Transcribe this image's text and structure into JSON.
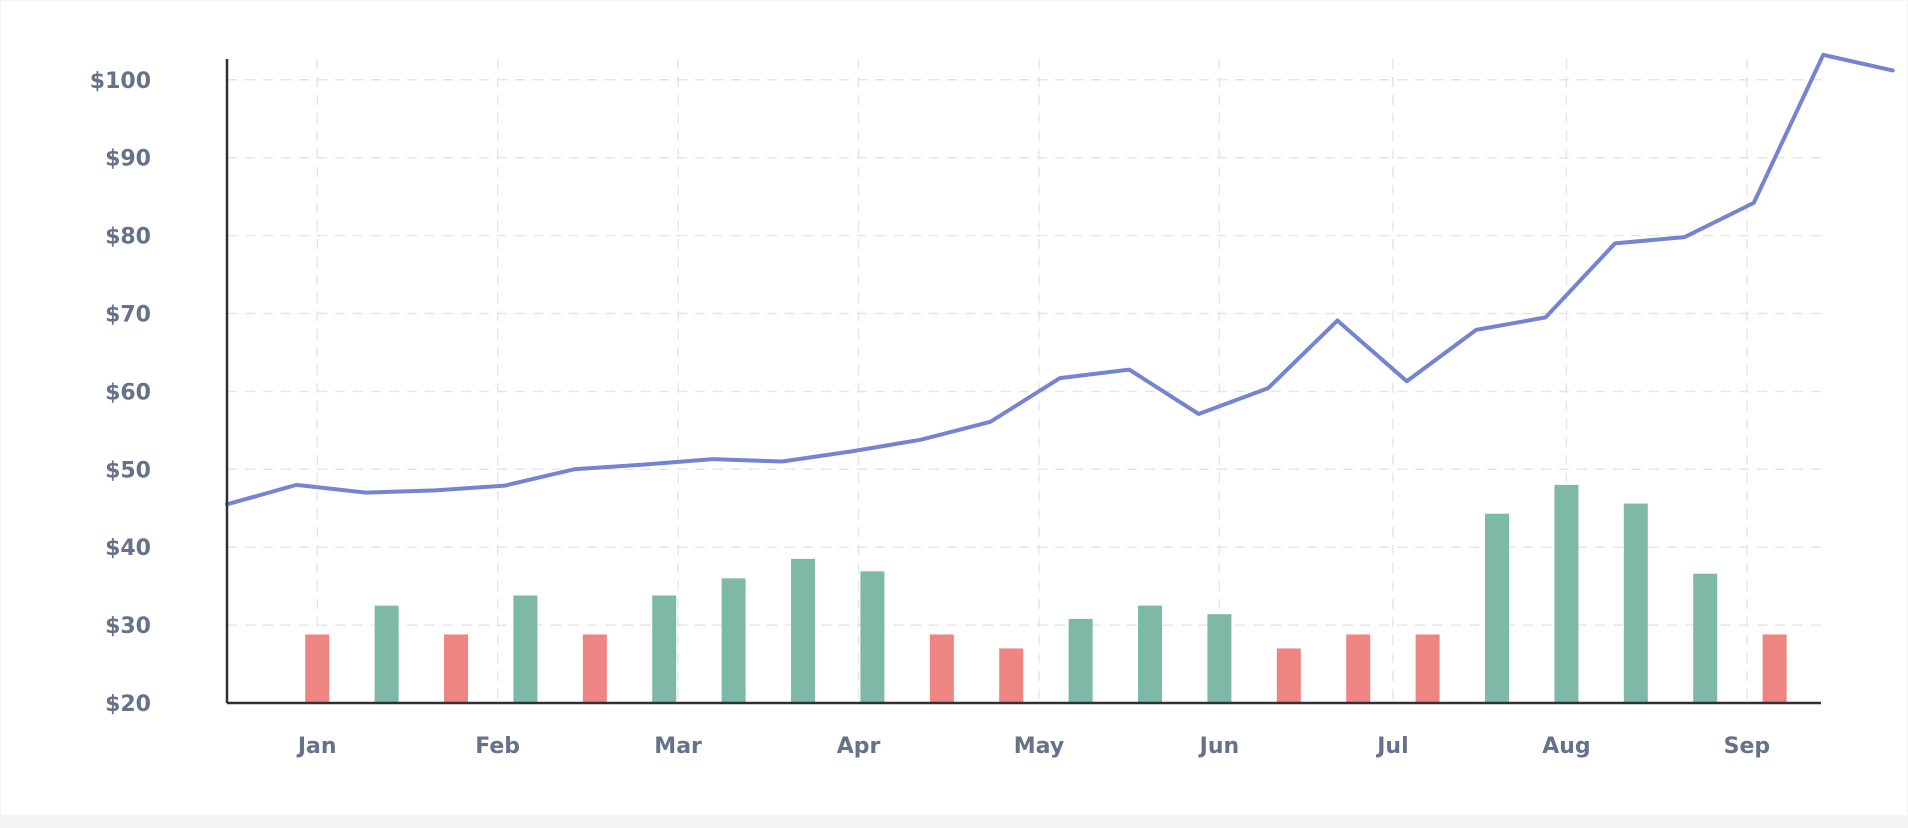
{
  "chart_data": {
    "type": "line+bar",
    "title": "",
    "xlabel": "",
    "ylabel": "",
    "ylim": [
      20,
      100
    ],
    "y_ticks": [
      "$20",
      "$30",
      "$40",
      "$50",
      "$60",
      "$70",
      "$80",
      "$90",
      "$100"
    ],
    "y_tick_values": [
      20,
      30,
      40,
      50,
      60,
      70,
      80,
      90,
      100
    ],
    "x_ticks": [
      "Jan",
      "Feb",
      "Mar",
      "Apr",
      "May",
      "Jun",
      "Jul",
      "Aug",
      "Sep"
    ],
    "x_tick_index": [
      1.3,
      3.9,
      6.5,
      9.1,
      11.7,
      14.3,
      16.8,
      19.3,
      21.9
    ],
    "grid": true,
    "legend": "none",
    "line_series": {
      "color": "#7584d0",
      "values": [
        45.5,
        48,
        47,
        47.3,
        47.9,
        50,
        50.6,
        51.3,
        51,
        52.3,
        53.8,
        56.1,
        61.7,
        62.8,
        57.1,
        60.4,
        69.1,
        61.3,
        67.9,
        69.5,
        79,
        79.8,
        84.2,
        103.2,
        101.2
      ]
    },
    "bar_series": {
      "colors": {
        "up": "#7eb9a8",
        "down": "#ee8583"
      },
      "bars": [
        {
          "index": 1.3,
          "value": 28.8,
          "direction": "down"
        },
        {
          "index": 2.3,
          "value": 32.5,
          "direction": "up"
        },
        {
          "index": 3.3,
          "value": 28.8,
          "direction": "down"
        },
        {
          "index": 4.3,
          "value": 33.8,
          "direction": "up"
        },
        {
          "index": 5.3,
          "value": 28.8,
          "direction": "down"
        },
        {
          "index": 6.3,
          "value": 33.8,
          "direction": "up"
        },
        {
          "index": 7.3,
          "value": 36,
          "direction": "up"
        },
        {
          "index": 8.3,
          "value": 38.5,
          "direction": "up"
        },
        {
          "index": 9.3,
          "value": 36.9,
          "direction": "up"
        },
        {
          "index": 10.3,
          "value": 28.8,
          "direction": "down"
        },
        {
          "index": 11.3,
          "value": 27,
          "direction": "down"
        },
        {
          "index": 12.3,
          "value": 30.8,
          "direction": "up"
        },
        {
          "index": 13.3,
          "value": 32.5,
          "direction": "up"
        },
        {
          "index": 14.3,
          "value": 31.4,
          "direction": "up"
        },
        {
          "index": 15.3,
          "value": 27,
          "direction": "down"
        },
        {
          "index": 16.3,
          "value": 28.8,
          "direction": "down"
        },
        {
          "index": 17.3,
          "value": 28.8,
          "direction": "down"
        },
        {
          "index": 18.3,
          "value": 44.3,
          "direction": "up"
        },
        {
          "index": 19.3,
          "value": 48,
          "direction": "up"
        },
        {
          "index": 20.3,
          "value": 45.6,
          "direction": "up"
        },
        {
          "index": 21.3,
          "value": 36.6,
          "direction": "up"
        },
        {
          "index": 22.3,
          "value": 28.8,
          "direction": "down"
        }
      ]
    }
  }
}
